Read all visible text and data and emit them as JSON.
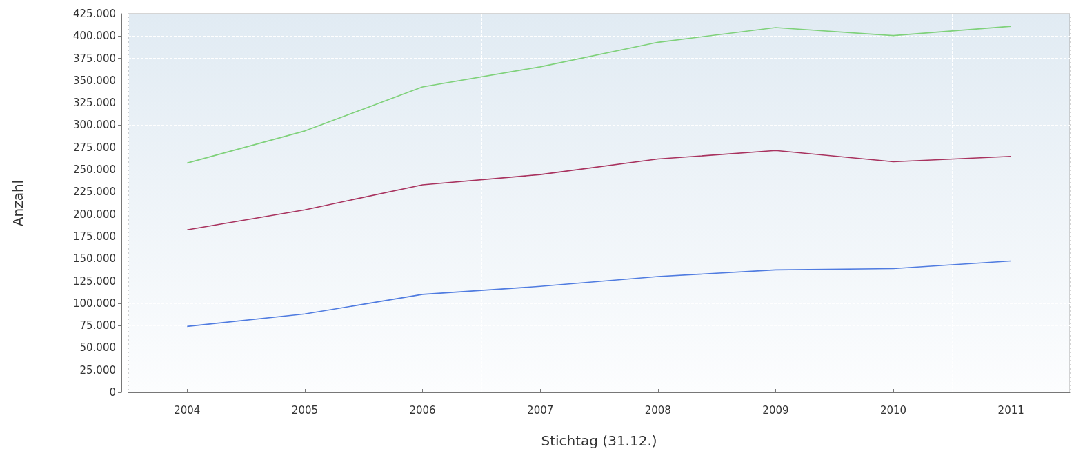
{
  "chart_data": {
    "type": "line",
    "xlabel": "Stichtag (31.12.)",
    "ylabel": "Anzahl",
    "categories": [
      "2004",
      "2005",
      "2006",
      "2007",
      "2008",
      "2009",
      "2010",
      "2011"
    ],
    "series": [
      {
        "color": "#7fd17a",
        "values": [
          257500,
          293500,
          343000,
          365500,
          393000,
          409500,
          400500,
          411000
        ]
      },
      {
        "color": "#a8325e",
        "values": [
          182500,
          205000,
          233000,
          244500,
          262000,
          271500,
          259000,
          265000
        ]
      },
      {
        "color": "#4f7be0",
        "values": [
          74000,
          88000,
          110000,
          119000,
          130000,
          137500,
          139000,
          147500
        ]
      }
    ],
    "ylim": [
      0,
      425000
    ],
    "yticks": [
      {
        "value": 0,
        "label": "0"
      },
      {
        "value": 25000,
        "label": "25.000"
      },
      {
        "value": 50000,
        "label": "50.000"
      },
      {
        "value": 75000,
        "label": "75.000"
      },
      {
        "value": 100000,
        "label": "100.000"
      },
      {
        "value": 125000,
        "label": "125.000"
      },
      {
        "value": 150000,
        "label": "150.000"
      },
      {
        "value": 175000,
        "label": "175.000"
      },
      {
        "value": 200000,
        "label": "200.000"
      },
      {
        "value": 225000,
        "label": "225.000"
      },
      {
        "value": 250000,
        "label": "250.000"
      },
      {
        "value": 275000,
        "label": "275.000"
      },
      {
        "value": 300000,
        "label": "300.000"
      },
      {
        "value": 325000,
        "label": "325.000"
      },
      {
        "value": 350000,
        "label": "350.000"
      },
      {
        "value": 375000,
        "label": "375.000"
      },
      {
        "value": 400000,
        "label": "400.000"
      },
      {
        "value": 425000,
        "label": "425.000"
      }
    ],
    "grid": true,
    "marker": "none",
    "line_style": "solid"
  }
}
